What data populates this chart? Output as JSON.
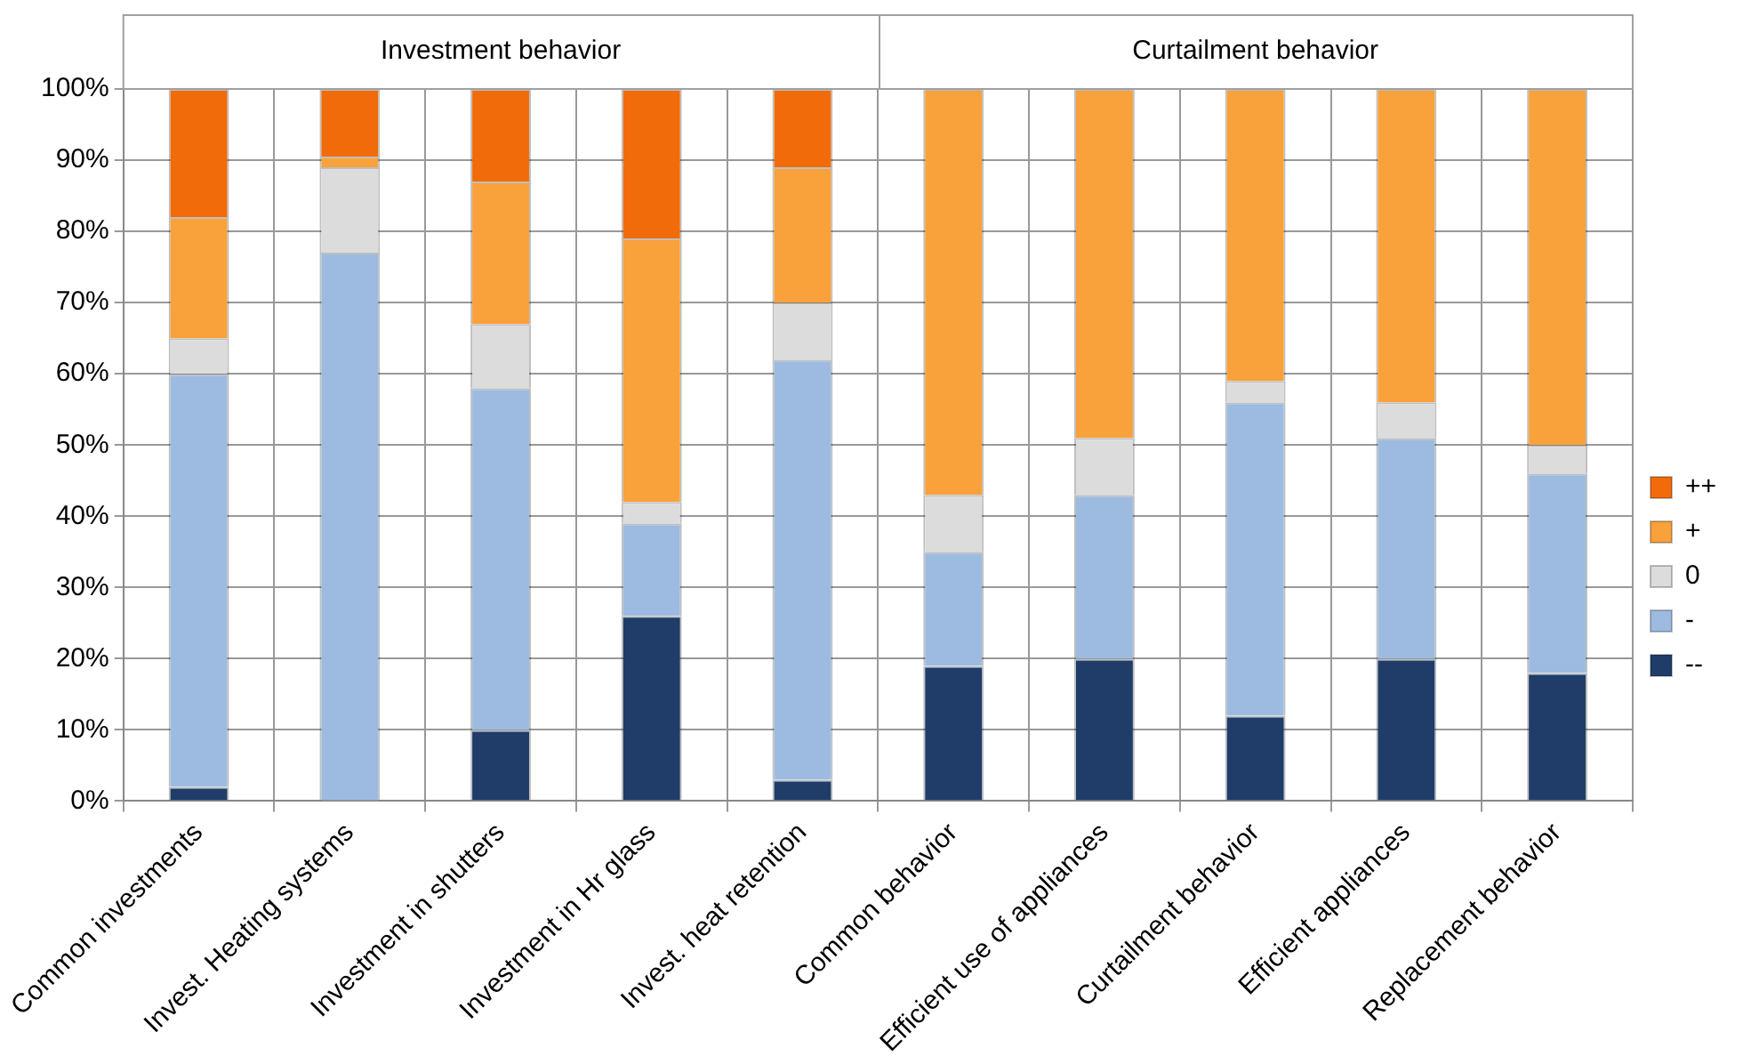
{
  "chart_data": {
    "type": "bar",
    "stacked": true,
    "categories": [
      "Common investments",
      "Invest. Heating systems",
      "Investment in shutters",
      "Investment in Hr glass",
      "Invest. heat retention",
      "Common behavior",
      "Efficient use of appliances",
      "Curtailment behavior",
      "Efficient appliances",
      "Replacement behavior"
    ],
    "series": [
      {
        "name": "--",
        "color": "#1f3d68",
        "values": [
          2,
          0,
          10,
          26,
          3,
          19,
          20,
          12,
          20,
          18
        ]
      },
      {
        "name": "-",
        "color": "#9dbbe0",
        "values": [
          58,
          77,
          48,
          13,
          59,
          16,
          23,
          44,
          31,
          28
        ]
      },
      {
        "name": "0",
        "color": "#dcdcdc",
        "values": [
          5,
          12,
          9,
          3,
          8,
          8,
          8,
          3,
          5,
          4
        ]
      },
      {
        "name": "+",
        "color": "#f9a13a",
        "values": [
          17,
          1.5,
          20,
          37,
          19,
          57,
          49,
          41,
          44,
          50
        ]
      },
      {
        "name": "++",
        "color": "#f26b0a",
        "values": [
          18,
          9.5,
          13,
          21,
          11,
          0,
          0,
          0,
          0,
          0
        ]
      }
    ],
    "ylim": [
      0,
      100
    ],
    "yticks": [
      {
        "value": 0,
        "label": "0%"
      },
      {
        "value": 10,
        "label": "10%"
      },
      {
        "value": 20,
        "label": "20%"
      },
      {
        "value": 30,
        "label": "30%"
      },
      {
        "value": 40,
        "label": "40%"
      },
      {
        "value": 50,
        "label": "50%"
      },
      {
        "value": 60,
        "label": "60%"
      },
      {
        "value": 70,
        "label": "70%"
      },
      {
        "value": 80,
        "label": "80%"
      },
      {
        "value": 90,
        "label": "90%"
      },
      {
        "value": 100,
        "label": "100%"
      }
    ],
    "grid": true,
    "legend": "right",
    "annotations": [
      "Investment behavior",
      "Curtailment behavior"
    ]
  }
}
